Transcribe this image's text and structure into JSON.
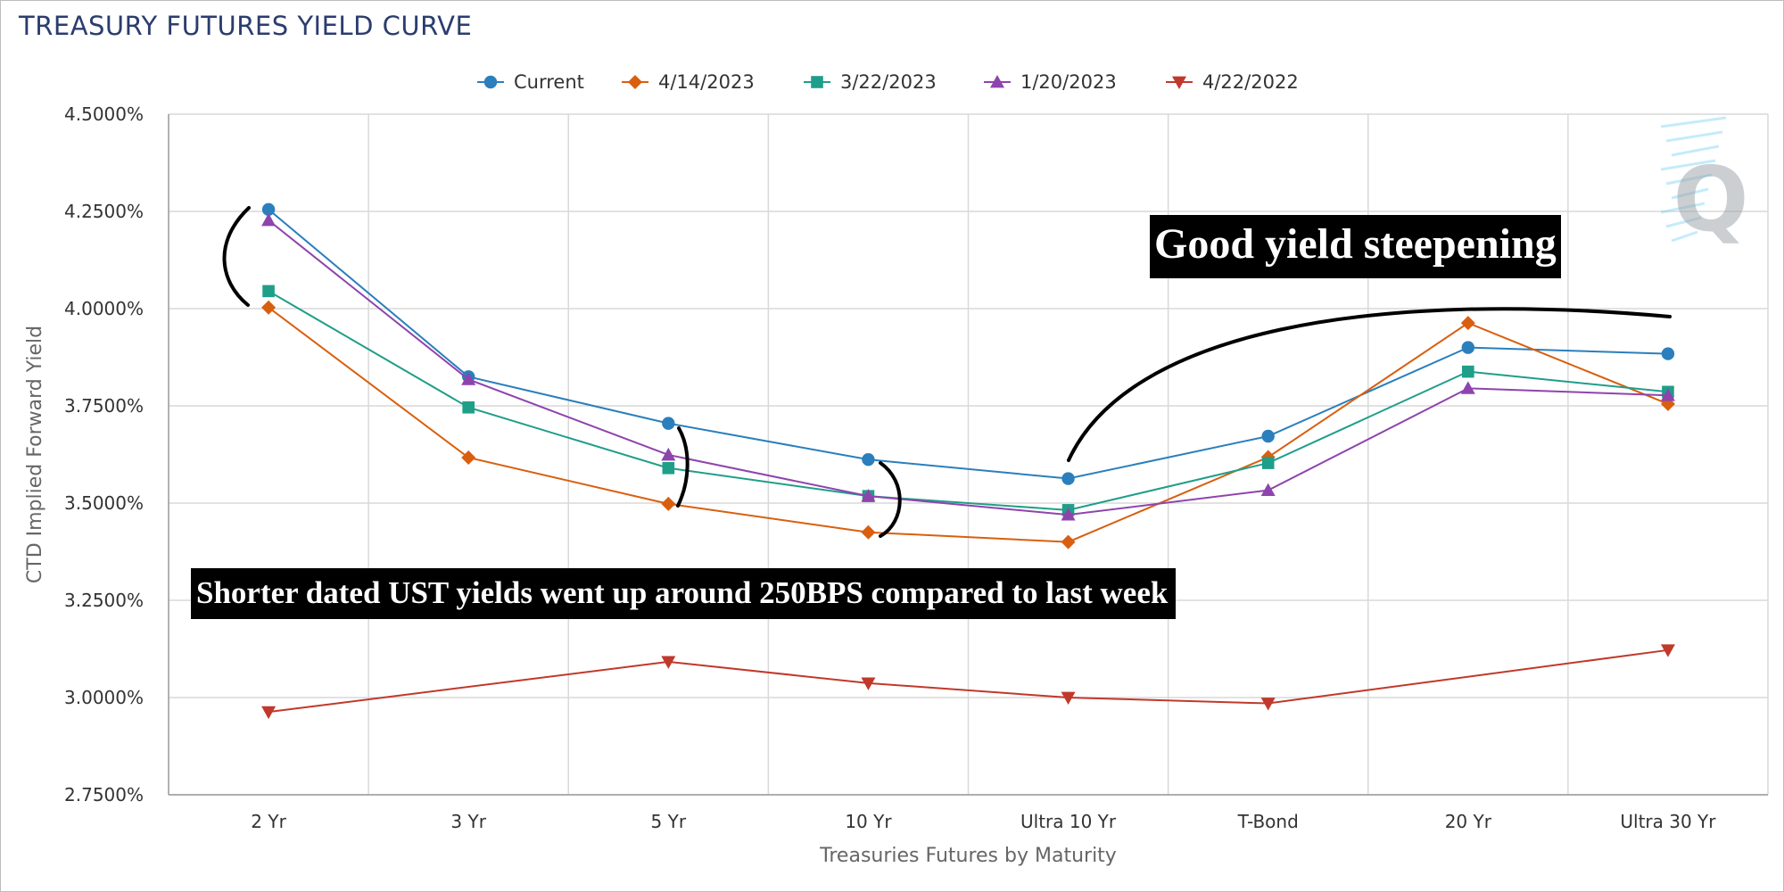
{
  "chart_data": {
    "type": "line",
    "title": "TREASURY FUTURES YIELD CURVE",
    "xlabel": "Treasuries Futures by Maturity",
    "ylabel": "CTD Implied Forward Yield",
    "categories": [
      "2 Yr",
      "3 Yr",
      "5 Yr",
      "10 Yr",
      "Ultra 10 Yr",
      "T-Bond",
      "20 Yr",
      "Ultra 30 Yr"
    ],
    "ylim": [
      2.75,
      4.5
    ],
    "yticks": [
      2.75,
      3.0,
      3.25,
      3.5,
      3.75,
      4.0,
      4.25,
      4.5
    ],
    "ytick_labels": [
      "2.7500%",
      "3.0000%",
      "3.2500%",
      "3.5000%",
      "3.7500%",
      "4.0000%",
      "4.2500%",
      "4.5000%"
    ],
    "grid": true,
    "legend_position": "top-center",
    "series": [
      {
        "name": "Current",
        "color": "#2a7fbc",
        "marker": "circle",
        "values": [
          4.255,
          3.825,
          3.705,
          3.612,
          3.563,
          3.672,
          3.9,
          3.884
        ]
      },
      {
        "name": "4/14/2023",
        "color": "#d95f0e",
        "marker": "diamond",
        "values": [
          4.003,
          3.617,
          3.498,
          3.425,
          3.4,
          3.618,
          3.963,
          3.755
        ]
      },
      {
        "name": "3/22/2023",
        "color": "#1f9e89",
        "marker": "square",
        "values": [
          4.045,
          3.746,
          3.59,
          3.518,
          3.482,
          3.603,
          3.838,
          3.786
        ]
      },
      {
        "name": "1/20/2023",
        "color": "#8e44ad",
        "marker": "triangle-up",
        "values": [
          4.227,
          3.818,
          3.624,
          3.518,
          3.47,
          3.533,
          3.795,
          3.777
        ]
      },
      {
        "name": "4/22/2022",
        "color": "#c0392b",
        "marker": "triangle-down",
        "values": [
          2.963,
          null,
          3.092,
          3.037,
          3.0,
          2.985,
          null,
          3.122
        ]
      }
    ],
    "annotations": [
      "Good yield steepening",
      "Shorter dated UST yields went up around 250BPS compared to last week"
    ]
  },
  "watermark": {
    "letter": "Q",
    "color": "#9aa0a6",
    "accent": "#5bc8f5"
  }
}
